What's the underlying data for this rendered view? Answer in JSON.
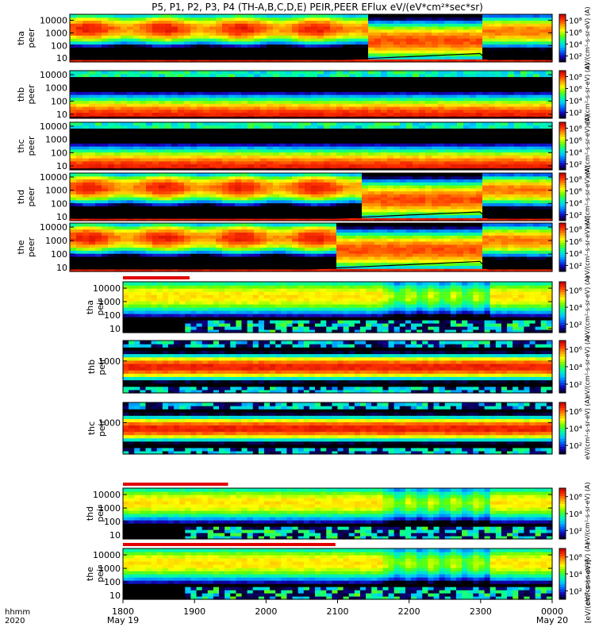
{
  "chart_data": {
    "type": "heatmap",
    "title": "P5, P1, P2, P3, P4 (TH-A,B,C,D,E) PEIR,PEER EFlux eV/(eV*cm²*sec*sr)",
    "time_label_line1": "hhmm",
    "time_label_line2": "2020",
    "x_ticks": [
      "1800",
      "1900",
      "2000",
      "2100",
      "2200",
      "2300",
      "0000"
    ],
    "x_date_labels": [
      {
        "tick": "1800",
        "date": "May 19"
      },
      {
        "tick": "0000",
        "date": "May 20"
      }
    ],
    "colorbar_label": "eV/(cm²-s-sr-eV) (A)",
    "colorbar_label_bottom": "[eV/(cm²-s-sr-eV)]",
    "colorbar_ticks_electron": [
      "10²",
      "10⁴",
      "10⁶",
      "10⁸"
    ],
    "colorbar_ticks_ion": [
      "10²",
      "10⁴",
      "10⁶"
    ],
    "panels": [
      {
        "probe": "tha",
        "species": "peer",
        "yticks": [
          "10000",
          "1000",
          "100",
          "10"
        ],
        "ylim": [
          5,
          30000
        ],
        "kind": "electron",
        "onset": 0.62
      },
      {
        "probe": "thb",
        "species": "peer",
        "yticks": [
          "10000",
          "1000",
          "100",
          "10"
        ],
        "ylim": [
          5,
          20000
        ],
        "kind": "electron_low",
        "onset": 2.0
      },
      {
        "probe": "thc",
        "species": "peer",
        "yticks": [
          "10000",
          "1000",
          "100",
          "10"
        ],
        "ylim": [
          5,
          20000
        ],
        "kind": "electron_low",
        "onset": 2.0
      },
      {
        "probe": "thd",
        "species": "peer",
        "yticks": [
          "10000",
          "1000",
          "100",
          "10"
        ],
        "ylim": [
          5,
          20000
        ],
        "kind": "electron",
        "onset": 0.6
      },
      {
        "probe": "the",
        "species": "peer",
        "yticks": [
          "10000",
          "1000",
          "100",
          "10"
        ],
        "ylim": [
          5,
          20000
        ],
        "kind": "electron",
        "onset": 0.55
      },
      {
        "probe": "tha",
        "species": "peir",
        "yticks": [
          "10000",
          "1000",
          "100",
          "10"
        ],
        "ylim": [
          5,
          30000
        ],
        "kind": "ion",
        "mode_bar_end": 0.155
      },
      {
        "probe": "thb",
        "species": "peir",
        "yticks": [
          "1000"
        ],
        "ylim": [
          5,
          30000
        ],
        "kind": "ion_band"
      },
      {
        "probe": "thc",
        "species": "peir",
        "yticks": [
          "1000"
        ],
        "ylim": [
          5,
          30000
        ],
        "kind": "ion_band"
      },
      {
        "probe": "thd",
        "species": "peir",
        "yticks": [
          "10000",
          "1000",
          "100",
          "10"
        ],
        "ylim": [
          5,
          30000
        ],
        "kind": "ion",
        "mode_bar_end": 0.245
      },
      {
        "probe": "the",
        "species": "peir",
        "yticks": [
          "10000",
          "1000",
          "100",
          "10"
        ],
        "ylim": [
          5,
          30000
        ],
        "kind": "ion",
        "mode_bar_end": 0.495
      }
    ],
    "colormap": [
      "#000000",
      "#1400b4",
      "#0064ff",
      "#00c8ff",
      "#00ffa0",
      "#64ff00",
      "#ffff00",
      "#ffa000",
      "#ff3200",
      "#c80000"
    ],
    "grid": false
  }
}
